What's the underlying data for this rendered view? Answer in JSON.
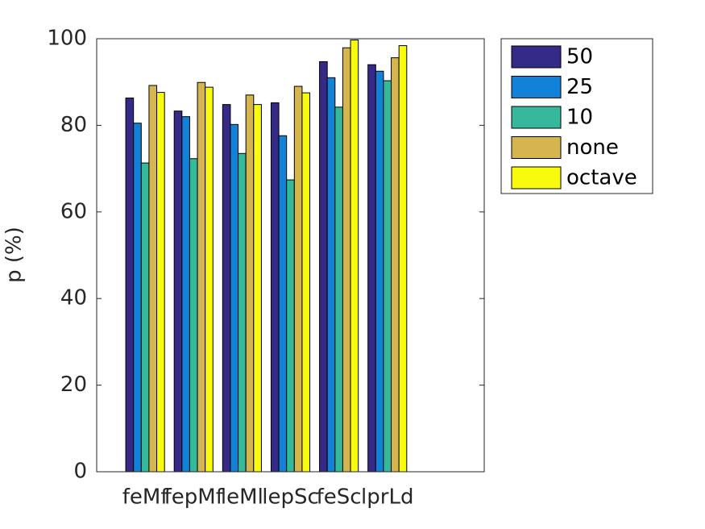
{
  "chart_data": {
    "type": "bar",
    "ylabel": "p (%)",
    "categories": [
      "feMf",
      "fepMf",
      "leMl",
      "lepSc",
      "feSc",
      "lprLd"
    ],
    "series": [
      {
        "name": "50",
        "color": "#352a87",
        "values": [
          86.3,
          83.3,
          84.8,
          85.2,
          94.7,
          94.0
        ]
      },
      {
        "name": "25",
        "color": "#1282d8",
        "values": [
          80.5,
          82.0,
          80.2,
          77.6,
          91.0,
          92.5
        ]
      },
      {
        "name": "10",
        "color": "#36b89b",
        "values": [
          71.3,
          72.3,
          73.5,
          67.4,
          84.2,
          90.3
        ]
      },
      {
        "name": "none",
        "color": "#d4b54f",
        "values": [
          89.2,
          89.9,
          87.0,
          89.0,
          97.9,
          95.6
        ]
      },
      {
        "name": "octave",
        "color": "#f9fb0e",
        "values": [
          87.6,
          88.8,
          84.8,
          87.5,
          99.7,
          98.4
        ]
      }
    ],
    "xlim": [
      0,
      8
    ],
    "ylim": [
      0,
      100
    ],
    "yticks": [
      0,
      20,
      40,
      60,
      80,
      100
    ],
    "grid": false,
    "legend": "outside-northeast"
  }
}
